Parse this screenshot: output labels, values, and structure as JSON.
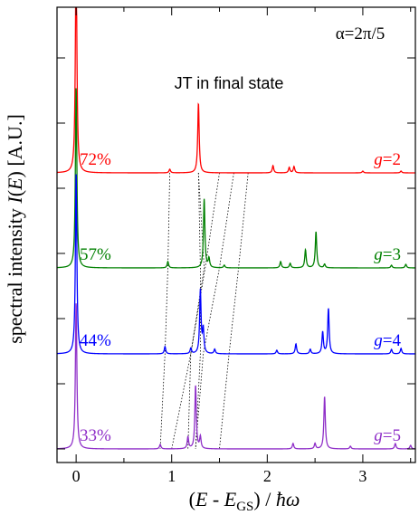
{
  "chart_data": {
    "type": "line",
    "title": "",
    "alpha_label": "α=2π/5",
    "annotation": "JT in final state",
    "xlabel": "(E - E_GS) / ħω",
    "xlabel_parts": {
      "open": "(",
      "E1": "E",
      "minus": " - ",
      "E2": "E",
      "sub": "GS",
      "close": ") / ",
      "hbar": "ħω"
    },
    "ylabel": "spectral intensity  I(E)  [A.U.]",
    "ylabel_parts": {
      "main": "spectral intensity  ",
      "I": "I",
      "open": "(",
      "E": "E",
      "close": ")",
      "units": "  [A.U.]"
    },
    "xlim": [
      -0.2,
      3.55
    ],
    "xticks": [
      0,
      1,
      2,
      3
    ],
    "xtick_labels": [
      "0",
      "1",
      "2",
      "3"
    ],
    "yticks_shown": false,
    "grid": false,
    "legend": "none",
    "series": [
      {
        "name": "g=2",
        "g_label": "g",
        "g_value": "=2",
        "weight_label": "72%",
        "color": "#ff0000",
        "offset": 3.05,
        "peaks": [
          {
            "x": 0.0,
            "h": 2.55
          },
          {
            "x": 0.98,
            "h": 0.04
          },
          {
            "x": 1.28,
            "h": 0.77
          },
          {
            "x": 2.06,
            "h": 0.08
          },
          {
            "x": 2.23,
            "h": 0.06
          },
          {
            "x": 2.28,
            "h": 0.07
          },
          {
            "x": 3.0,
            "h": 0.02
          },
          {
            "x": 3.4,
            "h": 0.02
          }
        ]
      },
      {
        "name": "g=3",
        "g_label": "g",
        "g_value": "=3",
        "weight_label": "57%",
        "color": "#008000",
        "offset": 2.0,
        "peaks": [
          {
            "x": 0.0,
            "h": 2.0
          },
          {
            "x": 0.96,
            "h": 0.07
          },
          {
            "x": 1.34,
            "h": 0.76
          },
          {
            "x": 1.39,
            "h": 0.1
          },
          {
            "x": 1.55,
            "h": 0.03
          },
          {
            "x": 2.14,
            "h": 0.07
          },
          {
            "x": 2.24,
            "h": 0.05
          },
          {
            "x": 2.4,
            "h": 0.2
          },
          {
            "x": 2.51,
            "h": 0.4
          },
          {
            "x": 2.6,
            "h": 0.04
          },
          {
            "x": 3.3,
            "h": 0.03
          },
          {
            "x": 3.45,
            "h": 0.04
          }
        ]
      },
      {
        "name": "g=4",
        "g_label": "g",
        "g_value": "=4",
        "weight_label": "44%",
        "color": "#0000ff",
        "offset": 1.05,
        "peaks": [
          {
            "x": 0.0,
            "h": 2.0
          },
          {
            "x": 0.93,
            "h": 0.08
          },
          {
            "x": 1.2,
            "h": 0.06
          },
          {
            "x": 1.3,
            "h": 0.7
          },
          {
            "x": 1.33,
            "h": 0.26
          },
          {
            "x": 1.45,
            "h": 0.05
          },
          {
            "x": 2.1,
            "h": 0.04
          },
          {
            "x": 2.3,
            "h": 0.11
          },
          {
            "x": 2.45,
            "h": 0.05
          },
          {
            "x": 2.58,
            "h": 0.24
          },
          {
            "x": 2.64,
            "h": 0.5
          },
          {
            "x": 3.3,
            "h": 0.05
          },
          {
            "x": 3.4,
            "h": 0.06
          }
        ]
      },
      {
        "name": "g=5",
        "g_label": "g",
        "g_value": "=5",
        "weight_label": "33%",
        "color": "#8f2fc8",
        "offset": 0.0,
        "peaks": [
          {
            "x": 0.0,
            "h": 1.62
          },
          {
            "x": 0.88,
            "h": 0.05
          },
          {
            "x": 1.17,
            "h": 0.13
          },
          {
            "x": 1.25,
            "h": 0.7
          },
          {
            "x": 1.3,
            "h": 0.13
          },
          {
            "x": 2.27,
            "h": 0.06
          },
          {
            "x": 2.5,
            "h": 0.06
          },
          {
            "x": 2.6,
            "h": 0.58
          },
          {
            "x": 2.87,
            "h": 0.03
          },
          {
            "x": 3.34,
            "h": 0.06
          },
          {
            "x": 3.5,
            "h": 0.04
          }
        ]
      }
    ],
    "correlation_lines": [
      [
        {
          "x": 0.98,
          "y": 3.05
        },
        {
          "x": 0.96,
          "y": 2.0
        },
        {
          "x": 0.93,
          "y": 1.05
        },
        {
          "x": 0.88,
          "y": 0.0
        }
      ],
      [
        {
          "x": 1.28,
          "y": 3.05
        },
        {
          "x": 1.34,
          "y": 2.0
        },
        {
          "x": 1.2,
          "y": 1.05
        },
        {
          "x": 1.17,
          "y": 0.0
        }
      ],
      [
        {
          "x": 1.28,
          "y": 3.05
        },
        {
          "x": 1.3,
          "y": 2.0
        },
        {
          "x": 1.3,
          "y": 1.05
        },
        {
          "x": 1.25,
          "y": 0.0
        }
      ],
      [
        {
          "x": 1.5,
          "y": 3.05
        },
        {
          "x": 1.35,
          "y": 2.0
        },
        {
          "x": 1.2,
          "y": 1.05
        },
        {
          "x": 1.0,
          "y": 0.0
        }
      ],
      [
        {
          "x": 1.65,
          "y": 3.05
        },
        {
          "x": 1.5,
          "y": 2.0
        },
        {
          "x": 1.33,
          "y": 1.05
        },
        {
          "x": 1.25,
          "y": 0.0
        }
      ],
      [
        {
          "x": 1.8,
          "y": 3.05
        },
        {
          "x": 1.7,
          "y": 2.0
        },
        {
          "x": 1.6,
          "y": 1.05
        },
        {
          "x": 1.5,
          "y": 0.0
        }
      ]
    ]
  }
}
